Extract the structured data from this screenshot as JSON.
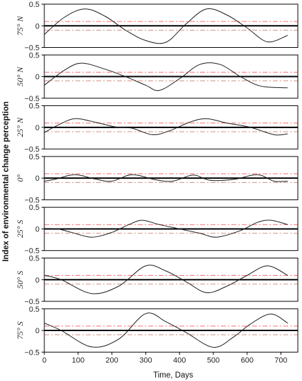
{
  "chart_data": {
    "type": "line",
    "xlabel": "Time, Days",
    "ylabel": "Index of environmental change perception",
    "xlim": [
      0,
      750
    ],
    "ylim": [
      -0.5,
      0.5
    ],
    "x_ticks": [
      0,
      100,
      200,
      300,
      400,
      500,
      600,
      700
    ],
    "y_ticks": [
      "0.5",
      "0",
      "−0.5"
    ],
    "threshold_upper": 0.1,
    "threshold_lower": -0.1,
    "colors": {
      "curve": "#1a1a1a",
      "zero_line": "#000000",
      "threshold_upper": "#ff6b6b",
      "threshold_lower": "#d4907e"
    },
    "panels": [
      {
        "label": "75° N",
        "x": [
          0,
          60,
          120,
          180,
          240,
          300,
          360,
          420,
          480,
          540,
          600,
          660,
          720
        ],
        "y": [
          -0.2,
          0.2,
          0.39,
          0.22,
          -0.1,
          -0.34,
          -0.38,
          0.05,
          0.39,
          0.25,
          -0.05,
          -0.37,
          -0.22
        ]
      },
      {
        "label": "50° N",
        "x": [
          0,
          60,
          110,
          180,
          240,
          300,
          340,
          400,
          460,
          520,
          580,
          640,
          720
        ],
        "y": [
          -0.2,
          0.15,
          0.31,
          0.17,
          0.0,
          -0.2,
          -0.32,
          -0.05,
          0.28,
          0.28,
          0.0,
          -0.22,
          -0.26
        ]
      },
      {
        "label": "25° N",
        "x": [
          0,
          40,
          90,
          150,
          210,
          260,
          320,
          370,
          430,
          480,
          540,
          610,
          680,
          720
        ],
        "y": [
          -0.12,
          0.05,
          0.2,
          0.12,
          0.01,
          -0.02,
          -0.17,
          -0.08,
          0.12,
          0.2,
          0.1,
          0.0,
          -0.17,
          -0.15
        ]
      },
      {
        "label": "0°",
        "x": [
          0,
          30,
          90,
          150,
          200,
          260,
          330,
          380,
          440,
          490,
          560,
          630,
          680,
          720
        ],
        "y": [
          -0.07,
          -0.03,
          0.08,
          -0.02,
          -0.07,
          0.08,
          -0.04,
          -0.07,
          0.07,
          -0.05,
          -0.03,
          0.08,
          -0.07,
          -0.07
        ]
      },
      {
        "label": "25° S",
        "x": [
          0,
          40,
          80,
          140,
          200,
          250,
          290,
          340,
          400,
          460,
          510,
          580,
          630,
          670,
          720
        ],
        "y": [
          0.01,
          0.0,
          -0.08,
          -0.19,
          -0.08,
          0.1,
          0.2,
          0.1,
          0.0,
          -0.1,
          -0.19,
          -0.04,
          0.15,
          0.2,
          0.1
        ]
      },
      {
        "label": "50° S",
        "x": [
          0,
          50,
          140,
          220,
          300,
          360,
          420,
          480,
          540,
          600,
          660,
          720
        ],
        "y": [
          0.1,
          0.0,
          -0.32,
          -0.15,
          0.32,
          0.2,
          -0.05,
          -0.3,
          -0.15,
          0.1,
          0.32,
          0.1
        ]
      },
      {
        "label": "75° S",
        "x": [
          0,
          50,
          140,
          220,
          300,
          360,
          420,
          500,
          560,
          610,
          670,
          720
        ],
        "y": [
          0.17,
          0.0,
          -0.38,
          -0.2,
          0.39,
          0.2,
          -0.05,
          -0.39,
          -0.15,
          0.15,
          0.38,
          0.17
        ]
      }
    ]
  }
}
